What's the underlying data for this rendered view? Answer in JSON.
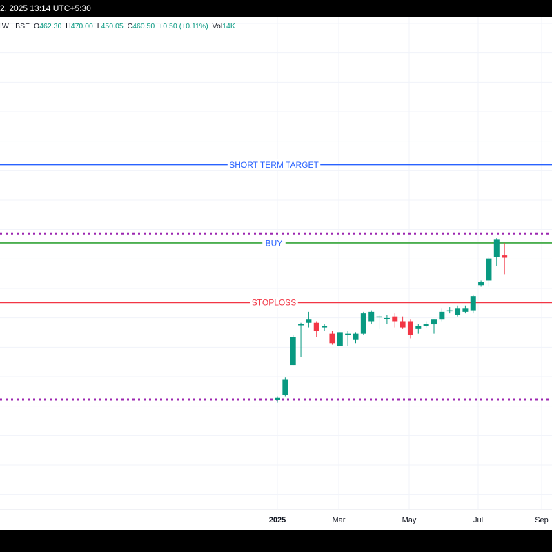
{
  "header": {
    "datetime": "2, 2025 13:14 UTC+5:30"
  },
  "legend": {
    "symbol": "IW · BSE",
    "o_label": "O",
    "o_value": "462.30",
    "h_label": "H",
    "h_value": "470.00",
    "l_label": "L",
    "l_value": "450.05",
    "c_label": "C",
    "c_value": "460.50",
    "change": "+0.50 (+0.11%)",
    "vol_label": "Vol",
    "vol_value": "14K"
  },
  "colors": {
    "up": "#089981",
    "down": "#f23645",
    "target": "#2962ff",
    "buy_line": "#4caf50",
    "buy_text": "#2962ff",
    "stoploss": "#f23645",
    "dotted": "#9c27b0",
    "grid": "#f0f3fa"
  },
  "chart_data": {
    "type": "candlestick",
    "x_ticks": [
      "2025",
      "Mar",
      "May",
      "Jul",
      "Sep"
    ],
    "levels": [
      {
        "label": "SHORT TERM TARGET",
        "price": 520,
        "style": "solid",
        "color": "#2962ff"
      },
      {
        "label": "BUY",
        "price": 470,
        "style": "solid",
        "color": "#4caf50"
      },
      {
        "label": "STOPLOSS",
        "price": 432,
        "style": "solid",
        "color": "#f23645"
      },
      {
        "label": "",
        "price": 476,
        "style": "dotted",
        "color": "#9c27b0"
      },
      {
        "label": "",
        "price": 370,
        "style": "dotted",
        "color": "#9c27b0"
      }
    ],
    "candles": [
      {
        "o": 370,
        "h": 372,
        "l": 368,
        "c": 371
      },
      {
        "o": 373,
        "h": 384,
        "l": 372,
        "c": 383
      },
      {
        "o": 392,
        "h": 411,
        "l": 392,
        "c": 410
      },
      {
        "o": 418,
        "h": 419,
        "l": 397,
        "c": 418
      },
      {
        "o": 419,
        "h": 426,
        "l": 416,
        "c": 421
      },
      {
        "o": 419,
        "h": 420,
        "l": 410,
        "c": 414
      },
      {
        "o": 416,
        "h": 418,
        "l": 414,
        "c": 417
      },
      {
        "o": 412,
        "h": 414,
        "l": 405,
        "c": 406
      },
      {
        "o": 404,
        "h": 413,
        "l": 404,
        "c": 413
      },
      {
        "o": 411,
        "h": 414,
        "l": 404,
        "c": 412
      },
      {
        "o": 408,
        "h": 413,
        "l": 406,
        "c": 412
      },
      {
        "o": 412,
        "h": 426,
        "l": 411,
        "c": 425
      },
      {
        "o": 420,
        "h": 427,
        "l": 418,
        "c": 426
      },
      {
        "o": 423,
        "h": 424,
        "l": 415,
        "c": 423
      },
      {
        "o": 422,
        "h": 424,
        "l": 418,
        "c": 422
      },
      {
        "o": 423,
        "h": 425,
        "l": 416,
        "c": 420
      },
      {
        "o": 420,
        "h": 423,
        "l": 415,
        "c": 416
      },
      {
        "o": 420,
        "h": 421,
        "l": 409,
        "c": 411
      },
      {
        "o": 415,
        "h": 418,
        "l": 412,
        "c": 417
      },
      {
        "o": 417,
        "h": 420,
        "l": 416,
        "c": 418
      },
      {
        "o": 418,
        "h": 421,
        "l": 412,
        "c": 421
      },
      {
        "o": 421,
        "h": 428,
        "l": 420,
        "c": 426
      },
      {
        "o": 427,
        "h": 429,
        "l": 425,
        "c": 427
      },
      {
        "o": 424,
        "h": 430,
        "l": 423,
        "c": 428
      },
      {
        "o": 426,
        "h": 430,
        "l": 425,
        "c": 428
      },
      {
        "o": 427,
        "h": 437,
        "l": 425,
        "c": 436
      },
      {
        "o": 443,
        "h": 446,
        "l": 442,
        "c": 445
      },
      {
        "o": 446,
        "h": 461,
        "l": 442,
        "c": 460
      },
      {
        "o": 461,
        "h": 473,
        "l": 455,
        "c": 472
      },
      {
        "o": 462,
        "h": 470,
        "l": 450,
        "c": 460.5
      }
    ],
    "y_range": [
      300,
      610
    ]
  }
}
